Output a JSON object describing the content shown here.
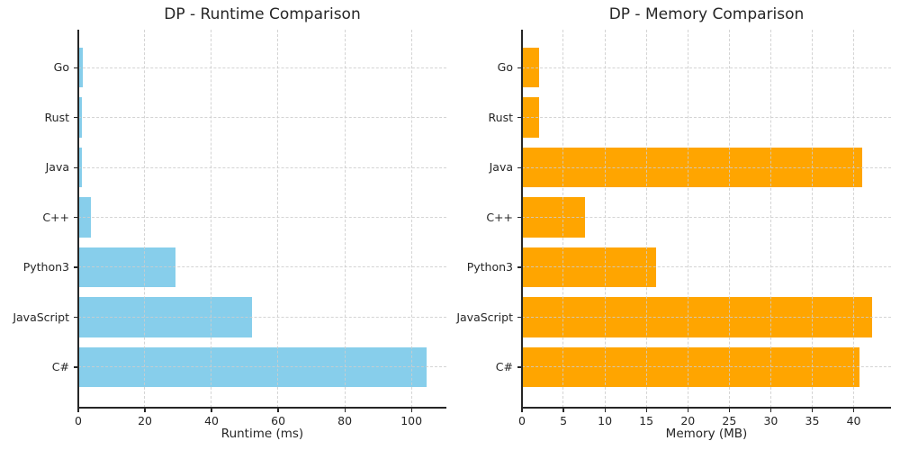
{
  "figure": {
    "background": "#ffffff"
  },
  "colors": {
    "text": "#262626",
    "spine": "#262626",
    "grid": "#cccccc",
    "runtime_bar": "#87CEEB",
    "memory_bar": "#FFA500"
  },
  "chart_data": [
    {
      "type": "bar",
      "orientation": "horizontal",
      "title": "DP - Runtime Comparison",
      "xlabel": "Runtime (ms)",
      "ylabel": "",
      "categories": [
        "Go",
        "Rust",
        "Java",
        "C++",
        "Python3",
        "JavaScript",
        "C#"
      ],
      "category_order": "top-to-bottom",
      "values": [
        1.4,
        1.2,
        1.1,
        3.9,
        29.2,
        52.2,
        104.5
      ],
      "xticks": [
        0,
        20,
        40,
        60,
        80,
        100
      ],
      "xlim": [
        0,
        110.5
      ],
      "bar_color": "#87CEEB",
      "grid": true,
      "grid_style": "dashed",
      "legend": "none"
    },
    {
      "type": "bar",
      "orientation": "horizontal",
      "title": "DP - Memory Comparison",
      "xlabel": "Memory (MB)",
      "ylabel": "",
      "categories": [
        "Go",
        "Rust",
        "Java",
        "C++",
        "Python3",
        "JavaScript",
        "C#"
      ],
      "category_order": "top-to-bottom",
      "values": [
        2.1,
        2.1,
        41.0,
        7.6,
        16.2,
        42.2,
        40.7
      ],
      "xticks": [
        0,
        5,
        10,
        15,
        20,
        25,
        30,
        35,
        40
      ],
      "xlim": [
        0,
        44.5
      ],
      "bar_color": "#FFA500",
      "grid": true,
      "grid_style": "dashed",
      "legend": "none"
    }
  ]
}
